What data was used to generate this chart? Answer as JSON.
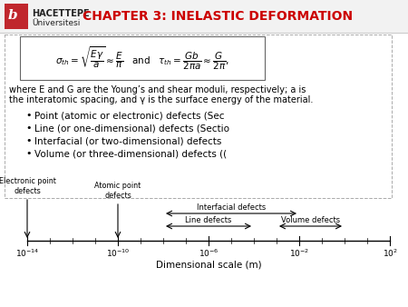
{
  "title": "CHAPTER 3: INELASTIC DEFORMATION",
  "title_color": "#cc0000",
  "bg_color": "#ffffff",
  "logo_text_line1": "HACETTEPE",
  "logo_text_line2": "Üniversitesi",
  "logo_rect_color": "#c0272d",
  "bullet_items": [
    "Point (atomic or electronic) defects (Sec",
    "Line (or one-dimensional) defects (Sectio",
    "Interfacial (or two-dimensional) defects",
    "Volume (or three-dimensional) defects (("
  ],
  "scale_exponents": [
    -14,
    -10,
    -6,
    -2,
    2
  ],
  "minor_exps": [
    -13,
    -12,
    -11,
    -9,
    -8,
    -7,
    -5,
    -4,
    -3,
    -1,
    0,
    1
  ],
  "xlabel": "Dimensional scale (m)",
  "tick_labels": [
    "$10^{-14}$",
    "$10^{-10}$",
    "$10^{-6}$",
    "$10^{-2}$",
    "$10^{2}$"
  ],
  "where_line1": "where E and G are the Young’s and shear moduli, respectively; a is",
  "where_line2": "the interatomic spacing, and γ is the surface energy of the material."
}
